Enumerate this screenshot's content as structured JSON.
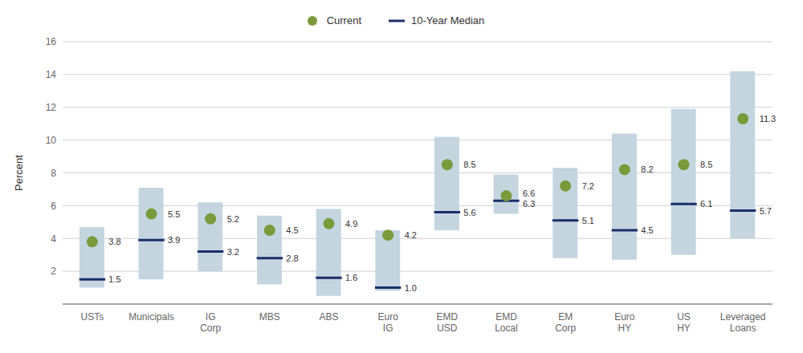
{
  "chart_data": {
    "type": "range_bar",
    "ylabel": "Percent",
    "categories": [
      "USTs",
      "Municipals",
      "IG\nCorp",
      "MBS",
      "ABS",
      "Euro\nIG",
      "EMD\nUSD",
      "EMD\nLocal",
      "EM\nCorp",
      "Euro\nHY",
      "US\nHY",
      "Leveraged\nLoans"
    ],
    "series": [
      {
        "type": "range_bar",
        "color": "#c5d5e0",
        "low": [
          1.0,
          1.5,
          2.0,
          1.2,
          0.5,
          0.8,
          4.5,
          5.5,
          2.8,
          2.7,
          3.0,
          4.0
        ],
        "high": [
          4.7,
          7.1,
          6.2,
          5.4,
          5.8,
          4.5,
          10.2,
          7.9,
          8.3,
          10.4,
          11.9,
          14.2
        ]
      },
      {
        "name": "Current",
        "type": "scatter",
        "marker": "circle",
        "color": "#7a9a3b",
        "data_labels": true,
        "values": [
          3.8,
          5.5,
          5.2,
          4.5,
          4.9,
          4.2,
          8.5,
          6.6,
          7.2,
          8.2,
          8.5,
          11.3
        ]
      },
      {
        "name": "10-Year Median",
        "type": "median",
        "color": "#1a2e6c",
        "data_labels": true,
        "values": [
          1.5,
          3.9,
          3.2,
          2.8,
          1.6,
          1.0,
          5.6,
          6.3,
          5.1,
          4.5,
          6.1,
          5.7
        ],
        "value_labels": [
          "1.5",
          "3.9",
          "3.2",
          "2.8",
          "1.6",
          "1.0",
          "5.6",
          "6.3",
          "5.1",
          "4.5",
          "6.1",
          "5.7"
        ]
      }
    ],
    "ylim": [
      0,
      16
    ],
    "yticks": [
      2,
      4,
      6,
      8,
      10,
      12,
      14,
      16
    ],
    "grid": true,
    "legend": "top"
  }
}
